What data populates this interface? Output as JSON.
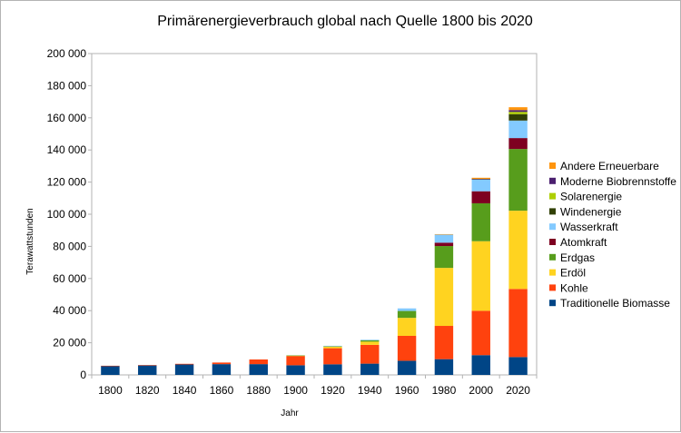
{
  "chart_data": {
    "type": "bar",
    "stacked": true,
    "title": "Primärenergieverbrauch global nach Quelle 1800 bis 2020",
    "xlabel": "Jahr",
    "ylabel": "Terawattstunden",
    "ylim": [
      0,
      200000
    ],
    "yticks": [
      0,
      20000,
      40000,
      60000,
      80000,
      100000,
      120000,
      140000,
      160000,
      180000,
      200000
    ],
    "ytick_labels": [
      "0",
      "20 000",
      "40 000",
      "60 000",
      "80 000",
      "100 000",
      "120 000",
      "140 000",
      "160 000",
      "180 000",
      "200 000"
    ],
    "grid": false,
    "legend_position": "right",
    "categories": [
      "1800",
      "1820",
      "1840",
      "1860",
      "1880",
      "1900",
      "1920",
      "1940",
      "1960",
      "1980",
      "2000",
      "2020"
    ],
    "series": [
      {
        "name": "Traditionelle Biomasse",
        "color": "#004586",
        "values": [
          5600,
          6000,
          6500,
          6700,
          6700,
          6000,
          6600,
          7000,
          8800,
          9800,
          12300,
          11100
        ]
      },
      {
        "name": "Kohle",
        "color": "#ff420e",
        "values": [
          100,
          100,
          400,
          1000,
          2900,
          5800,
          10000,
          11700,
          15500,
          20700,
          27600,
          42400
        ]
      },
      {
        "name": "Erdöl",
        "color": "#ffd320",
        "values": [
          0,
          0,
          0,
          0,
          0,
          200,
          1000,
          2000,
          11200,
          36100,
          43300,
          48700
        ]
      },
      {
        "name": "Erdgas",
        "color": "#579d1c",
        "values": [
          0,
          0,
          0,
          0,
          0,
          100,
          300,
          800,
          4300,
          13600,
          23600,
          38400
        ]
      },
      {
        "name": "Atomkraft",
        "color": "#7e0021",
        "values": [
          0,
          0,
          0,
          0,
          0,
          0,
          0,
          0,
          0,
          2100,
          7500,
          6800
        ]
      },
      {
        "name": "Wasserkraft",
        "color": "#83caff",
        "values": [
          0,
          0,
          0,
          0,
          0,
          0,
          200,
          400,
          1600,
          5000,
          7500,
          10900
        ]
      },
      {
        "name": "Windenergie",
        "color": "#314004",
        "values": [
          0,
          0,
          0,
          0,
          0,
          0,
          0,
          0,
          0,
          0,
          100,
          4000
        ]
      },
      {
        "name": "Solarenergie",
        "color": "#aecf00",
        "values": [
          0,
          0,
          0,
          0,
          0,
          0,
          0,
          0,
          0,
          0,
          0,
          1400
        ]
      },
      {
        "name": "Moderne Biobrennstoffe",
        "color": "#4b1f6f",
        "values": [
          0,
          0,
          0,
          0,
          0,
          0,
          0,
          0,
          0,
          0,
          100,
          1100
        ]
      },
      {
        "name": "Andere Erneuerbare",
        "color": "#ff950e",
        "values": [
          0,
          0,
          0,
          0,
          0,
          0,
          0,
          0,
          0,
          300,
          700,
          1800
        ]
      }
    ]
  }
}
